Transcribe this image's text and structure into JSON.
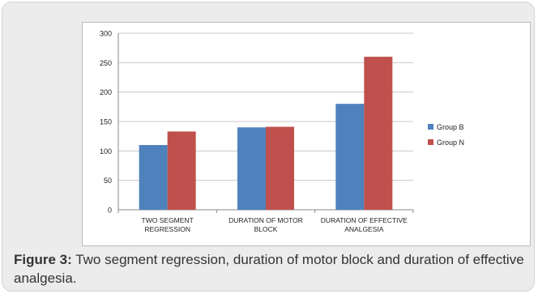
{
  "figure": {
    "caption_label": "Figure 3:",
    "caption_text": " Two segment regression, duration of motor block and duration of effective analgesia."
  },
  "chart_data": {
    "type": "bar",
    "categories": [
      [
        "TWO SEGMENT",
        "REGRESSION"
      ],
      [
        "DURATION OF MOTOR",
        "BLOCK"
      ],
      [
        "DURATION OF EFFECTIVE",
        "ANALGESIA"
      ]
    ],
    "series": [
      {
        "name": "Group B",
        "color": "#4f81bd",
        "values": [
          110,
          140,
          180
        ]
      },
      {
        "name": "Group N",
        "color": "#c0504d",
        "values": [
          133,
          141,
          260
        ]
      }
    ],
    "ylim": [
      0,
      300
    ],
    "yticks": [
      0,
      50,
      100,
      150,
      200,
      250,
      300
    ],
    "grid": true,
    "legend": "right"
  }
}
